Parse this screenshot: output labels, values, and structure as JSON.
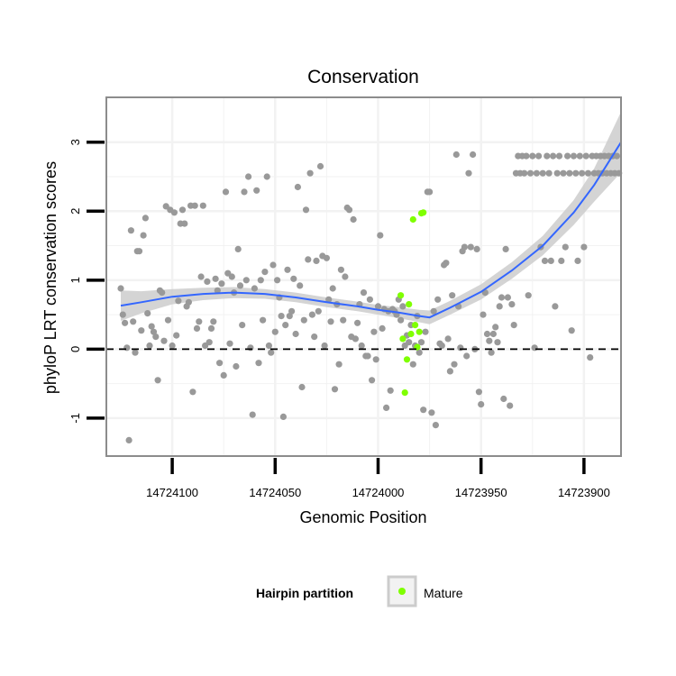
{
  "chart_data": {
    "type": "scatter",
    "title": "Conservation",
    "xlabel": "Genomic Position",
    "ylabel": "phyloP LRT conservation scores",
    "x_reversed": true,
    "xlim": [
      14724132,
      14723882
    ],
    "ylim": [
      -1.55,
      3.65
    ],
    "x_ticks": [
      14724100,
      14724050,
      14724000,
      14723950,
      14723900
    ],
    "y_ticks": [
      -1,
      0,
      1,
      2,
      3
    ],
    "grid": true,
    "reference_line": {
      "y": 0,
      "style": "dashed"
    },
    "colors": {
      "background_points": "#999999",
      "mature_points": "#7fff00",
      "smooth_line": "#3366ff",
      "confidence_band": "#cccccc",
      "grid": "#f2f2f2",
      "panel_border": "#8c8c8c"
    },
    "legend": {
      "title": "Hairpin partition",
      "entries": [
        "Mature"
      ],
      "position": "bottom"
    },
    "series": [
      {
        "role": "background",
        "points": [
          [
            14724125,
            0.88
          ],
          [
            14724124,
            0.5
          ],
          [
            14724123,
            0.38
          ],
          [
            14724122,
            0.02
          ],
          [
            14724121,
            -1.32
          ],
          [
            14724120,
            1.72
          ],
          [
            14724119,
            0.4
          ],
          [
            14724118,
            -0.05
          ],
          [
            14724117,
            1.42
          ],
          [
            14724116,
            1.42
          ],
          [
            14724115,
            0.27
          ],
          [
            14724114,
            1.65
          ],
          [
            14724113,
            1.9
          ],
          [
            14724112,
            0.52
          ],
          [
            14724111,
            0.05
          ],
          [
            14724110,
            0.33
          ],
          [
            14724109,
            0.25
          ],
          [
            14724108,
            0.18
          ],
          [
            14724107,
            -0.45
          ],
          [
            14724106,
            0.85
          ],
          [
            14724105,
            0.82
          ],
          [
            14724104,
            0.12
          ],
          [
            14724103,
            2.07
          ],
          [
            14724102,
            0.42
          ],
          [
            14724101,
            2.02
          ],
          [
            14724100,
            0.05
          ],
          [
            14724099,
            1.98
          ],
          [
            14724098,
            0.2
          ],
          [
            14724097,
            0.7
          ],
          [
            14724096,
            1.82
          ],
          [
            14724095,
            2.02
          ],
          [
            14724094,
            1.82
          ],
          [
            14724093,
            0.62
          ],
          [
            14724092,
            0.68
          ],
          [
            14724091,
            2.08
          ],
          [
            14724090,
            -0.62
          ],
          [
            14724089,
            2.08
          ],
          [
            14724088,
            0.3
          ],
          [
            14724087,
            0.4
          ],
          [
            14724086,
            1.05
          ],
          [
            14724085,
            2.08
          ],
          [
            14724084,
            0.05
          ],
          [
            14724083,
            0.98
          ],
          [
            14724082,
            0.1
          ],
          [
            14724081,
            0.3
          ],
          [
            14724080,
            0.4
          ],
          [
            14724079,
            1.02
          ],
          [
            14724078,
            0.85
          ],
          [
            14724077,
            -0.2
          ],
          [
            14724076,
            0.95
          ],
          [
            14724075,
            -0.38
          ],
          [
            14724074,
            2.28
          ],
          [
            14724073,
            1.1
          ],
          [
            14724072,
            0.08
          ],
          [
            14724071,
            1.05
          ],
          [
            14724070,
            0.82
          ],
          [
            14724069,
            -0.25
          ],
          [
            14724068,
            1.45
          ],
          [
            14724067,
            0.92
          ],
          [
            14724066,
            0.35
          ],
          [
            14724065,
            2.28
          ],
          [
            14724064,
            1.0
          ],
          [
            14724063,
            2.5
          ],
          [
            14724062,
            0.02
          ],
          [
            14724061,
            -0.95
          ],
          [
            14724060,
            0.88
          ],
          [
            14724059,
            2.3
          ],
          [
            14724058,
            -0.2
          ],
          [
            14724057,
            1.0
          ],
          [
            14724056,
            0.42
          ],
          [
            14724055,
            1.12
          ],
          [
            14724054,
            2.5
          ],
          [
            14724053,
            0.05
          ],
          [
            14724052,
            -0.05
          ],
          [
            14724051,
            1.22
          ],
          [
            14724050,
            0.25
          ],
          [
            14724049,
            1.0
          ],
          [
            14724048,
            0.75
          ],
          [
            14724047,
            0.48
          ],
          [
            14724046,
            -0.98
          ],
          [
            14724045,
            0.35
          ],
          [
            14724044,
            1.15
          ],
          [
            14724043,
            0.48
          ],
          [
            14724042,
            0.55
          ],
          [
            14724041,
            1.02
          ],
          [
            14724040,
            0.22
          ],
          [
            14724039,
            2.35
          ],
          [
            14724038,
            0.92
          ],
          [
            14724037,
            -0.55
          ],
          [
            14724036,
            0.42
          ],
          [
            14724035,
            2.02
          ],
          [
            14724034,
            1.3
          ],
          [
            14724033,
            2.55
          ],
          [
            14724032,
            0.5
          ],
          [
            14724031,
            0.18
          ],
          [
            14724030,
            1.28
          ],
          [
            14724029,
            0.55
          ],
          [
            14724028,
            2.65
          ],
          [
            14724027,
            1.35
          ],
          [
            14724026,
            0.05
          ],
          [
            14724025,
            1.32
          ],
          [
            14724024,
            0.72
          ],
          [
            14724023,
            0.4
          ],
          [
            14724022,
            0.88
          ],
          [
            14724021,
            -0.58
          ],
          [
            14724020,
            0.65
          ],
          [
            14724019,
            -0.22
          ],
          [
            14724018,
            1.15
          ],
          [
            14724017,
            0.42
          ],
          [
            14724016,
            1.05
          ],
          [
            14724015,
            2.05
          ],
          [
            14724014,
            2.02
          ],
          [
            14724013,
            0.18
          ],
          [
            14724012,
            1.88
          ],
          [
            14724011,
            0.15
          ],
          [
            14724010,
            0.38
          ],
          [
            14724009,
            0.65
          ],
          [
            14724008,
            0.05
          ],
          [
            14724007,
            0.82
          ],
          [
            14724006,
            -0.1
          ],
          [
            14724005,
            -0.1
          ],
          [
            14724004,
            0.72
          ],
          [
            14724003,
            -0.45
          ],
          [
            14724002,
            0.25
          ],
          [
            14724001,
            -0.15
          ],
          [
            14724000,
            0.62
          ],
          [
            14723999,
            1.65
          ],
          [
            14723998,
            0.3
          ],
          [
            14723997,
            0.58
          ],
          [
            14723996,
            -0.85
          ],
          [
            14723995,
            0.55
          ],
          [
            14723994,
            -0.6
          ],
          [
            14723993,
            0.58
          ],
          [
            14723992,
            0.55
          ],
          [
            14723991,
            0.5
          ],
          [
            14723990,
            0.72
          ],
          [
            14723989,
            0.42
          ],
          [
            14723988,
            0.62
          ],
          [
            14723987,
            0.05
          ],
          [
            14723986,
            0.2
          ],
          [
            14723985,
            0.1
          ],
          [
            14723984,
            0.35
          ],
          [
            14723983,
            -0.22
          ],
          [
            14723982,
            0.05
          ],
          [
            14723981,
            0.48
          ],
          [
            14723980,
            -0.05
          ],
          [
            14723979,
            0.1
          ],
          [
            14723978,
            -0.88
          ],
          [
            14723977,
            0.25
          ],
          [
            14723976,
            2.28
          ],
          [
            14723975,
            2.28
          ],
          [
            14723974,
            -0.92
          ],
          [
            14723973,
            0.55
          ],
          [
            14723972,
            -1.1
          ],
          [
            14723971,
            0.72
          ],
          [
            14723970,
            0.08
          ],
          [
            14723969,
            0.05
          ],
          [
            14723968,
            1.22
          ],
          [
            14723967,
            1.25
          ],
          [
            14723966,
            0.15
          ],
          [
            14723965,
            -0.32
          ],
          [
            14723964,
            0.78
          ],
          [
            14723963,
            -0.22
          ],
          [
            14723962,
            2.82
          ],
          [
            14723961,
            0.62
          ],
          [
            14723960,
            0.02
          ],
          [
            14723959,
            1.42
          ],
          [
            14723958,
            1.48
          ],
          [
            14723957,
            -0.1
          ],
          [
            14723956,
            2.55
          ],
          [
            14723955,
            1.48
          ],
          [
            14723954,
            2.82
          ],
          [
            14723953,
            0.0
          ],
          [
            14723952,
            1.45
          ],
          [
            14723951,
            -0.62
          ],
          [
            14723950,
            -0.8
          ],
          [
            14723949,
            0.5
          ],
          [
            14723948,
            0.82
          ],
          [
            14723947,
            0.22
          ],
          [
            14723946,
            0.12
          ],
          [
            14723945,
            -0.05
          ],
          [
            14723944,
            0.22
          ],
          [
            14723943,
            0.32
          ],
          [
            14723942,
            0.1
          ],
          [
            14723941,
            0.62
          ],
          [
            14723940,
            0.75
          ],
          [
            14723939,
            -0.72
          ],
          [
            14723938,
            1.45
          ],
          [
            14723937,
            0.75
          ],
          [
            14723936,
            -0.82
          ],
          [
            14723935,
            0.65
          ],
          [
            14723934,
            0.35
          ],
          [
            14723933,
            2.55
          ],
          [
            14723932,
            2.8
          ],
          [
            14723931,
            2.55
          ],
          [
            14723930,
            2.8
          ],
          [
            14723929,
            2.55
          ],
          [
            14723928,
            2.8
          ],
          [
            14723927,
            0.78
          ],
          [
            14723926,
            2.55
          ],
          [
            14723925,
            2.8
          ],
          [
            14723924,
            0.02
          ],
          [
            14723923,
            2.55
          ],
          [
            14723922,
            2.8
          ],
          [
            14723921,
            1.48
          ],
          [
            14723920,
            2.55
          ],
          [
            14723919,
            1.28
          ],
          [
            14723918,
            2.8
          ],
          [
            14723917,
            2.55
          ],
          [
            14723916,
            1.28
          ],
          [
            14723915,
            2.8
          ],
          [
            14723914,
            0.62
          ],
          [
            14723913,
            2.55
          ],
          [
            14723912,
            2.8
          ],
          [
            14723911,
            1.28
          ],
          [
            14723910,
            2.55
          ],
          [
            14723909,
            1.48
          ],
          [
            14723908,
            2.8
          ],
          [
            14723907,
            2.55
          ],
          [
            14723906,
            0.27
          ],
          [
            14723905,
            2.8
          ],
          [
            14723904,
            2.55
          ],
          [
            14723903,
            1.28
          ],
          [
            14723902,
            2.8
          ],
          [
            14723901,
            2.55
          ],
          [
            14723900,
            1.48
          ],
          [
            14723899,
            2.8
          ],
          [
            14723898,
            2.55
          ],
          [
            14723897,
            -0.12
          ],
          [
            14723896,
            2.8
          ],
          [
            14723895,
            2.55
          ],
          [
            14723894,
            2.8
          ],
          [
            14723893,
            2.55
          ],
          [
            14723892,
            2.8
          ],
          [
            14723891,
            2.55
          ],
          [
            14723890,
            2.8
          ],
          [
            14723889,
            2.55
          ],
          [
            14723888,
            2.8
          ],
          [
            14723887,
            2.55
          ],
          [
            14723886,
            2.8
          ],
          [
            14723885,
            2.55
          ],
          [
            14723884,
            2.8
          ],
          [
            14723883,
            2.55
          ]
        ]
      },
      {
        "name": "Mature",
        "points": [
          [
            14723989,
            0.78
          ],
          [
            14723988,
            0.15
          ],
          [
            14723987,
            -0.63
          ],
          [
            14723986,
            -0.15
          ],
          [
            14723985,
            0.65
          ],
          [
            14723984,
            0.22
          ],
          [
            14723983,
            1.88
          ],
          [
            14723982,
            0.35
          ],
          [
            14723981,
            0.03
          ],
          [
            14723980,
            0.25
          ],
          [
            14723979,
            1.97
          ],
          [
            14723978,
            1.98
          ]
        ]
      }
    ],
    "smooth": {
      "points": [
        [
          14724125,
          0.63
        ],
        [
          14724115,
          0.68
        ],
        [
          14724100,
          0.76
        ],
        [
          14724085,
          0.8
        ],
        [
          14724070,
          0.82
        ],
        [
          14724055,
          0.8
        ],
        [
          14724040,
          0.75
        ],
        [
          14724025,
          0.68
        ],
        [
          14724010,
          0.62
        ],
        [
          14724000,
          0.57
        ],
        [
          14723990,
          0.53
        ],
        [
          14723980,
          0.48
        ],
        [
          14723975,
          0.46
        ],
        [
          14723965,
          0.6
        ],
        [
          14723950,
          0.83
        ],
        [
          14723935,
          1.14
        ],
        [
          14723920,
          1.5
        ],
        [
          14723905,
          1.98
        ],
        [
          14723895,
          2.38
        ],
        [
          14723882,
          3.0
        ]
      ],
      "se_half_width": [
        0.22,
        0.16,
        0.11,
        0.09,
        0.08,
        0.07,
        0.07,
        0.07,
        0.07,
        0.07,
        0.08,
        0.09,
        0.1,
        0.1,
        0.11,
        0.12,
        0.14,
        0.18,
        0.24,
        0.44
      ]
    }
  }
}
